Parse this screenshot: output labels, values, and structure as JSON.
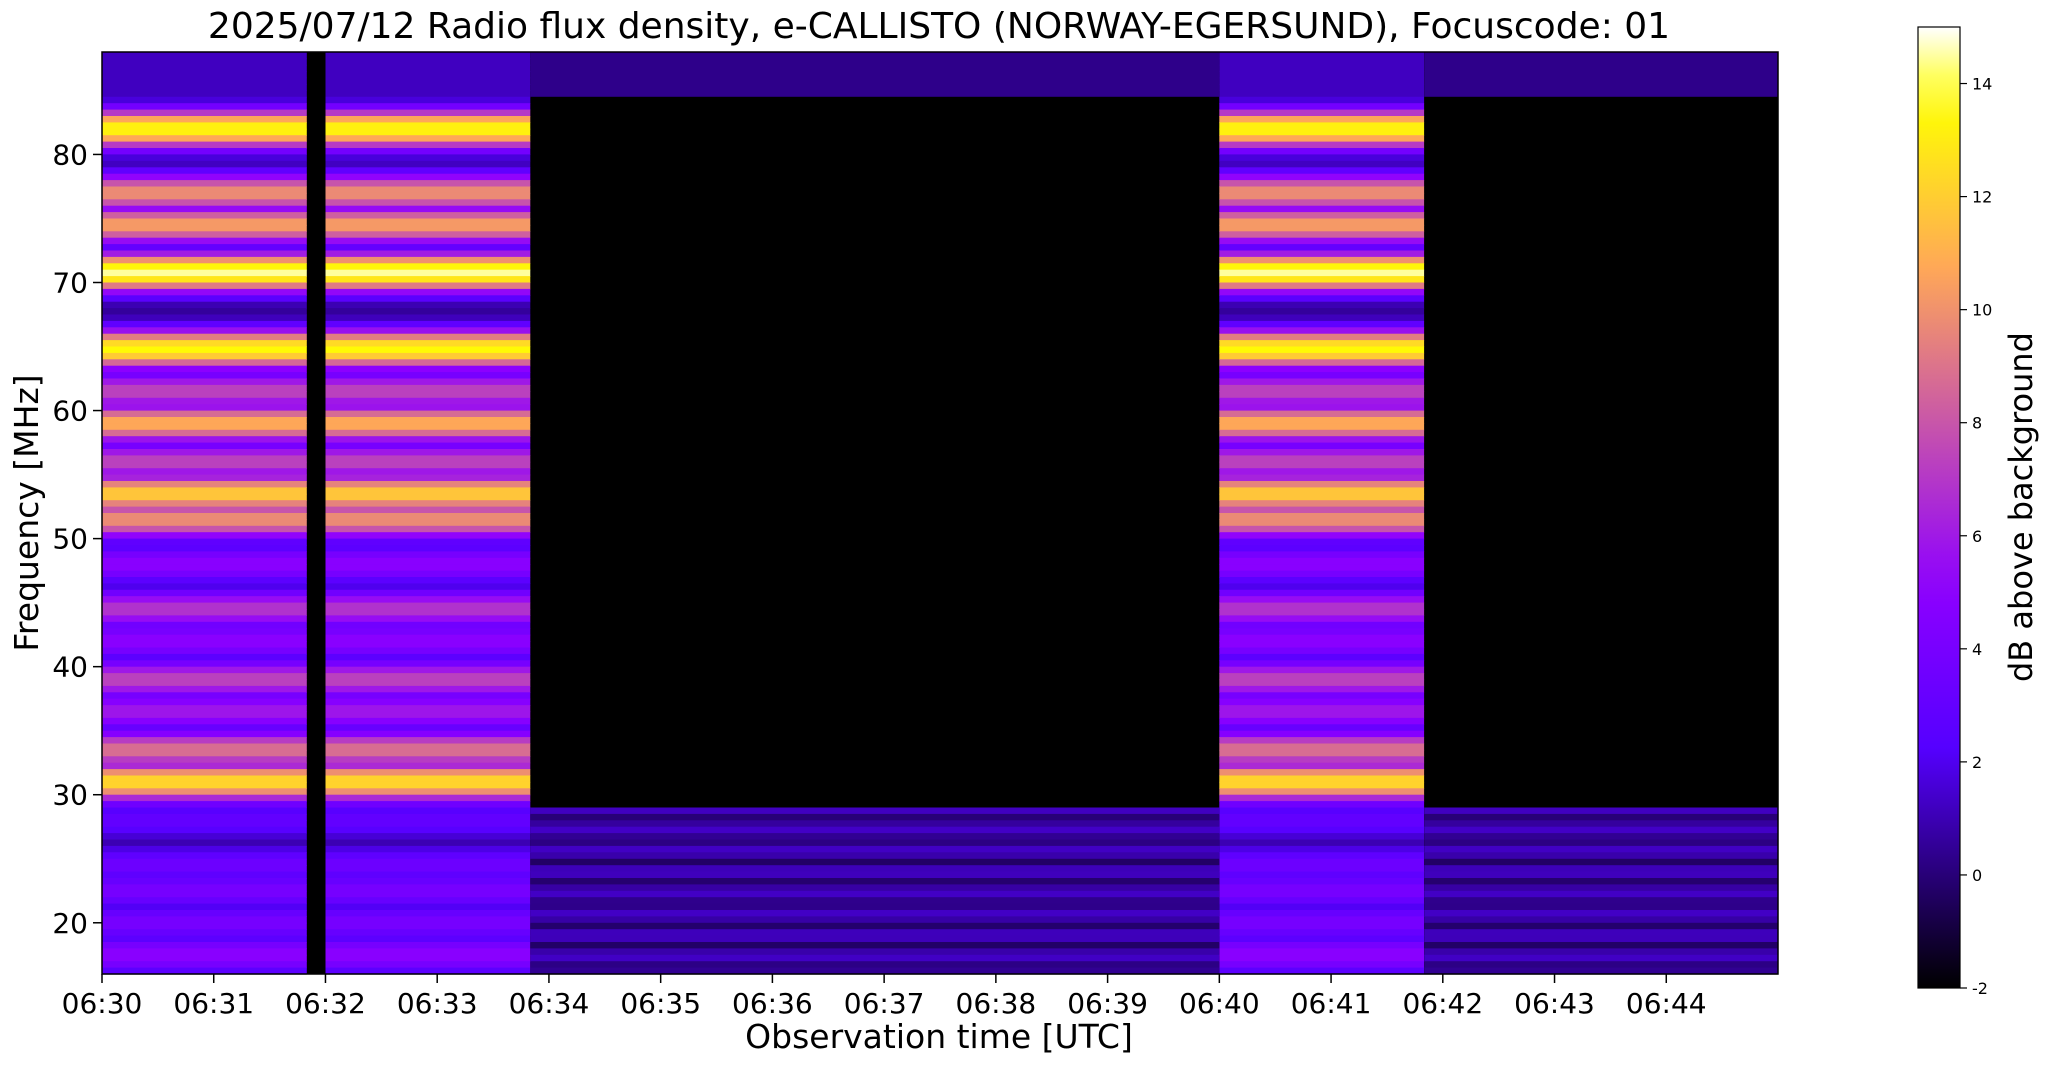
{
  "chart_data": {
    "type": "heatmap",
    "title": "2025/07/12  Radio flux density, e-CALLISTO (NORWAY-EGERSUND), Focuscode: 01",
    "xlabel": "Observation time [UTC]",
    "ylabel": "Frequency [MHz]",
    "colorbar_label": "dB above background",
    "x_range": [
      "06:30",
      "06:45"
    ],
    "y_range": [
      16,
      88
    ],
    "x_ticks": [
      "06:30",
      "06:31",
      "06:32",
      "06:33",
      "06:34",
      "06:35",
      "06:36",
      "06:37",
      "06:38",
      "06:39",
      "06:40",
      "06:41",
      "06:42",
      "06:43",
      "06:44"
    ],
    "y_ticks": [
      20,
      30,
      40,
      50,
      60,
      70,
      80
    ],
    "colorbar_range": [
      -2,
      15
    ],
    "colorbar_ticks": [
      -2,
      0,
      2,
      4,
      6,
      8,
      10,
      12,
      14
    ],
    "colormap": "gnuplot2",
    "active_intervals": [
      {
        "start": "06:30",
        "end": "06:31:50"
      },
      {
        "start": "06:32",
        "end": "06:33:50"
      },
      {
        "start": "06:40",
        "end": "06:41:50"
      }
    ],
    "emission_bands_mhz": [
      {
        "center": 82,
        "level": 13.5
      },
      {
        "center": 77,
        "level": 10
      },
      {
        "center": 74.5,
        "level": 10.5
      },
      {
        "center": 70.8,
        "level": 14.5
      },
      {
        "center": 64.8,
        "level": 13.5
      },
      {
        "center": 61.5,
        "level": 7.5
      },
      {
        "center": 59,
        "level": 11
      },
      {
        "center": 56,
        "level": 7.5
      },
      {
        "center": 53.5,
        "level": 12
      },
      {
        "center": 51.5,
        "level": 10
      },
      {
        "center": 48,
        "level": 5
      },
      {
        "center": 44.5,
        "level": 7
      },
      {
        "center": 42,
        "level": 5
      },
      {
        "center": 39,
        "level": 7.5
      },
      {
        "center": 36.5,
        "level": 6
      },
      {
        "center": 33.5,
        "level": 9
      },
      {
        "center": 31,
        "level": 12.5
      },
      {
        "center": 28,
        "level": 3
      },
      {
        "center": 24.5,
        "level": 3.5
      },
      {
        "center": 22.5,
        "level": 4
      },
      {
        "center": 20,
        "level": 4
      },
      {
        "center": 17.5,
        "level": 5
      }
    ],
    "quiet_background_level": -2
  }
}
